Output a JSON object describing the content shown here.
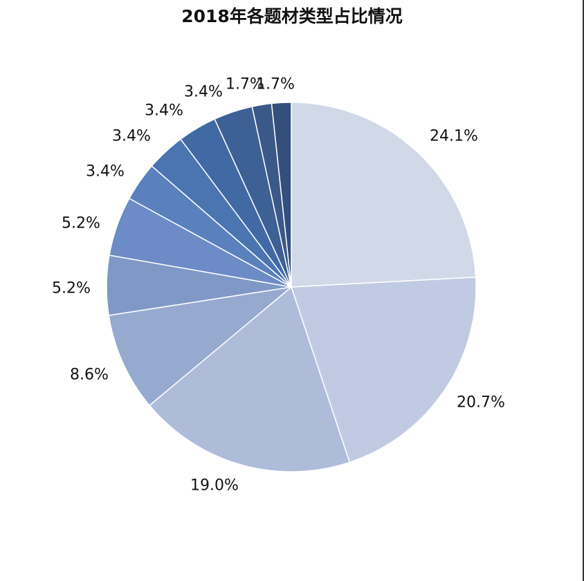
{
  "chart_data": {
    "type": "pie",
    "title": "2018年各题材类型占比情况",
    "values": [
      24.1,
      20.7,
      19.0,
      8.6,
      5.2,
      5.2,
      3.4,
      3.4,
      3.4,
      3.4,
      1.7,
      1.7
    ],
    "labels": [
      "24.1%",
      "20.7%",
      "19.0%",
      "8.6%",
      "5.2%",
      "5.2%",
      "3.4%",
      "3.4%",
      "3.4%",
      "3.4%",
      "1.7%",
      "1.7%"
    ],
    "colors": [
      "#d1d8e8",
      "#c0cbe3",
      "#aebcda",
      "#96a9cf",
      "#7f98c6",
      "#6d8bc6",
      "#5a80bd",
      "#4a75b0",
      "#416aa4",
      "#3d6095",
      "#3a5988",
      "#344f7c"
    ],
    "start": "12 o'clock",
    "direction": "clockwise",
    "legend": "none"
  }
}
